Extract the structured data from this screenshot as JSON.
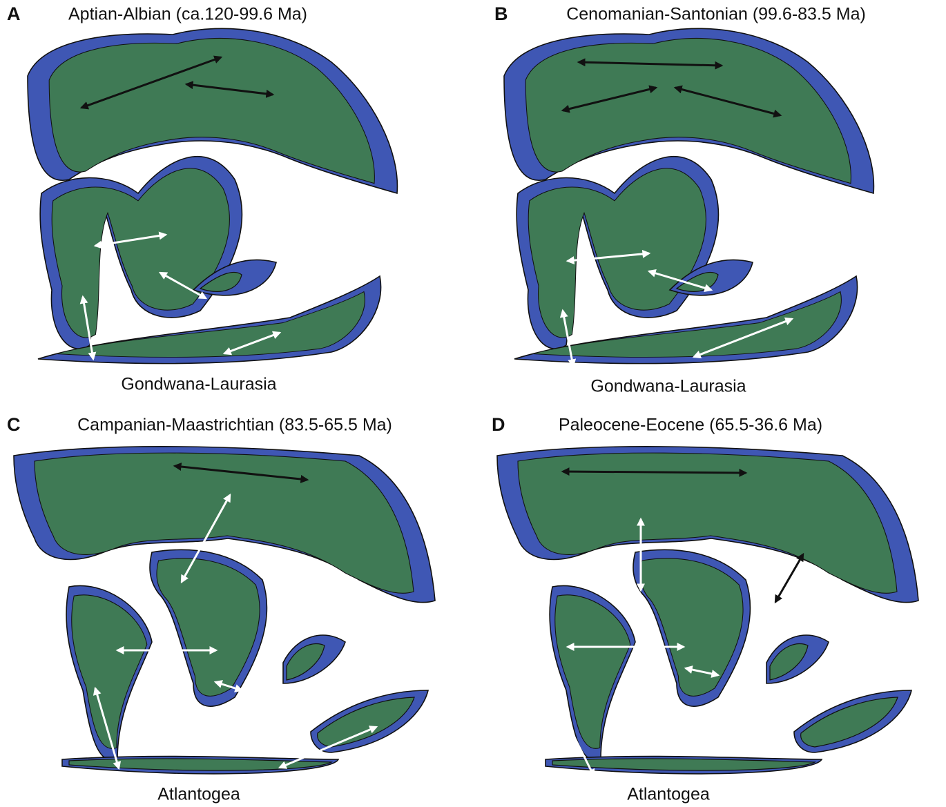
{
  "panels": [
    {
      "letter": "A",
      "title": "Aptian-Albian (ca.120-99.6 Ma)",
      "caption": "Gondwana-Laurasia"
    },
    {
      "letter": "B",
      "title": "Cenomanian-Santonian (99.6-83.5 Ma)",
      "caption": "Gondwana-Laurasia"
    },
    {
      "letter": "C",
      "title": "Campanian-Maastrichtian (83.5-65.5 Ma)",
      "caption": "Atlantogea"
    },
    {
      "letter": "D",
      "title": "Paleocene-Eocene (65.5-36.6 Ma)",
      "caption": "Atlantogea"
    }
  ]
}
